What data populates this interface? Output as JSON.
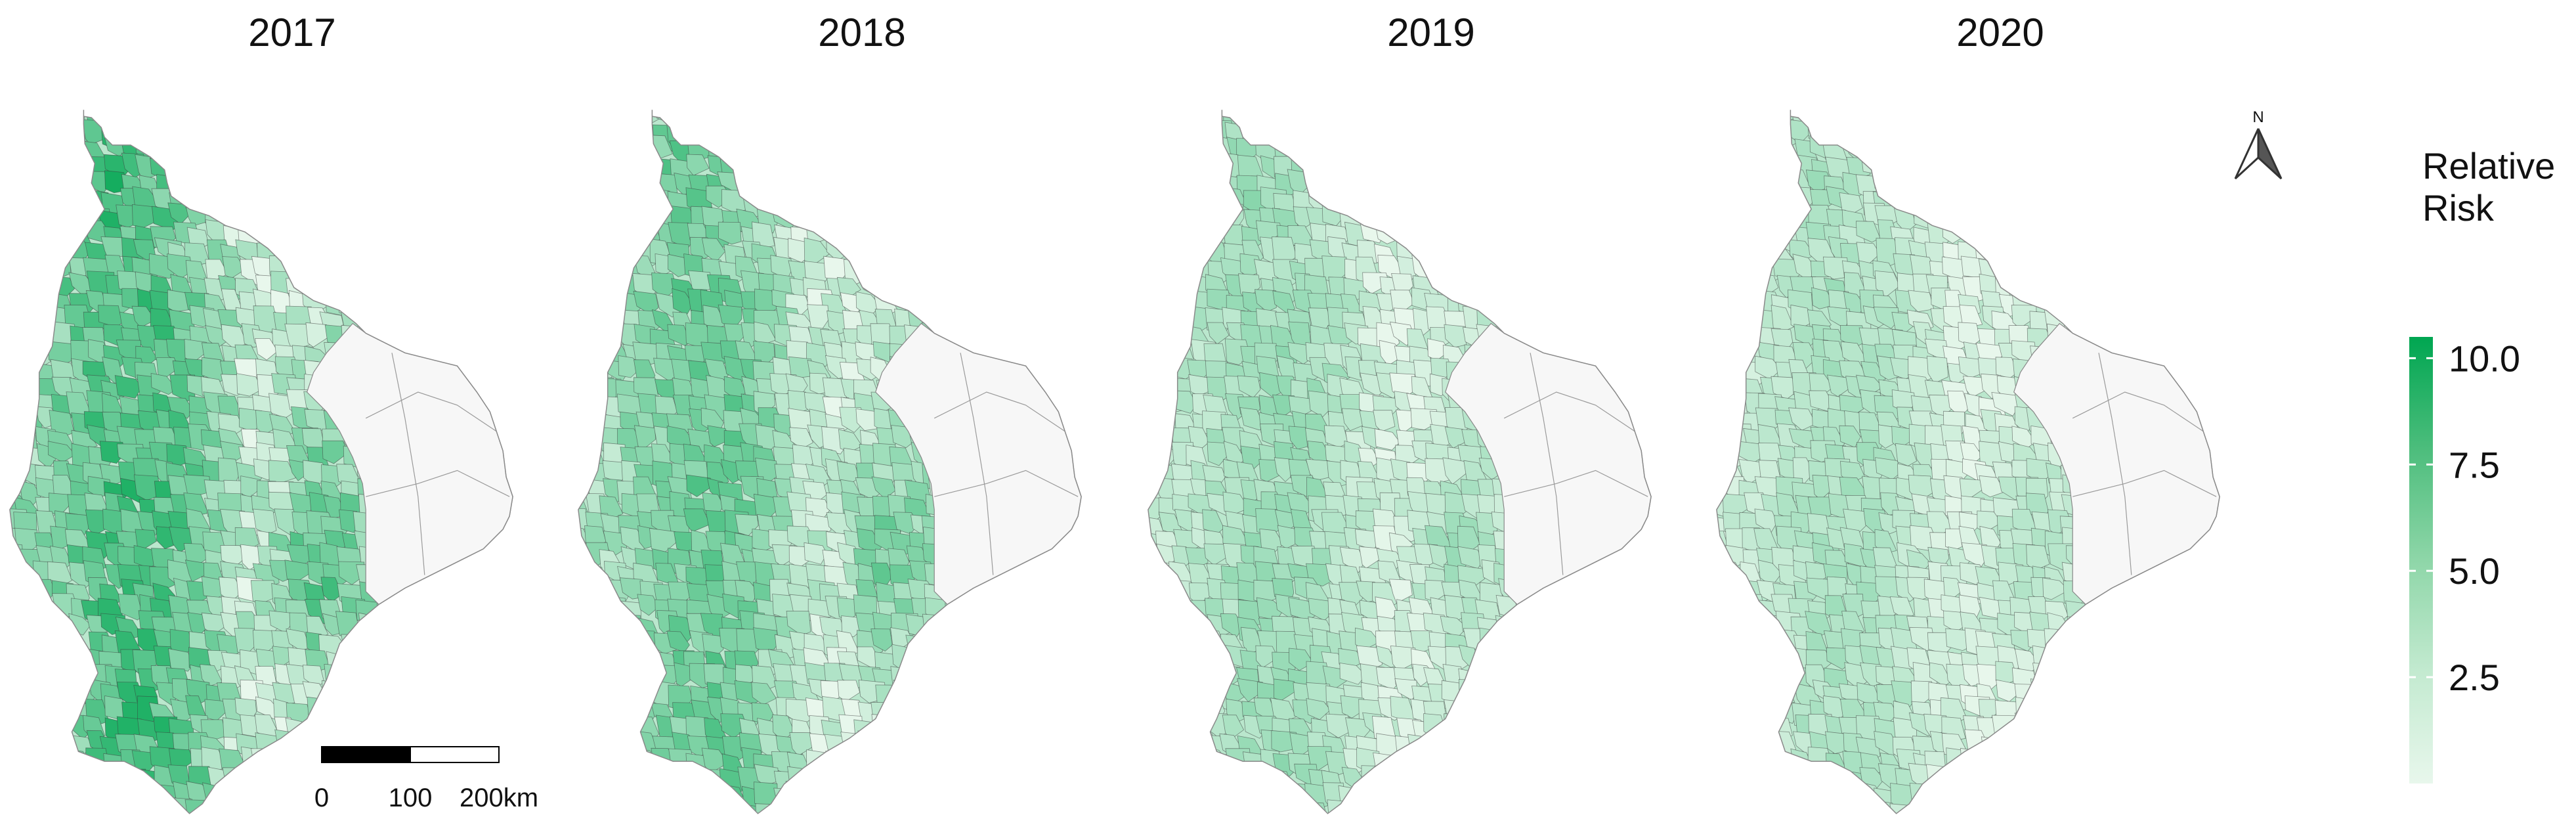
{
  "figure": {
    "panels": [
      {
        "year": "2017",
        "intensity": 0.82
      },
      {
        "year": "2018",
        "intensity": 0.62
      },
      {
        "year": "2019",
        "intensity": 0.38
      },
      {
        "year": "2020",
        "intensity": 0.3
      }
    ],
    "map_regions": {
      "outside_region_fill": "#f7f7f7",
      "border_color": "#3a3a3a"
    },
    "scale_bar": {
      "ticks": [
        "0",
        "100",
        "200km"
      ]
    },
    "north_arrow": {
      "label": "N",
      "icon": "north-arrow-icon"
    },
    "legend": {
      "title_line1": "Relative",
      "title_line2": "Risk",
      "ticks": [
        "10.0",
        "7.5",
        "5.0",
        "2.5"
      ],
      "tick_values": [
        10.0,
        7.5,
        5.0,
        2.5
      ],
      "range": [
        0,
        10.5
      ],
      "color_low": "#e8f7ec",
      "color_high": "#00a651"
    }
  }
}
